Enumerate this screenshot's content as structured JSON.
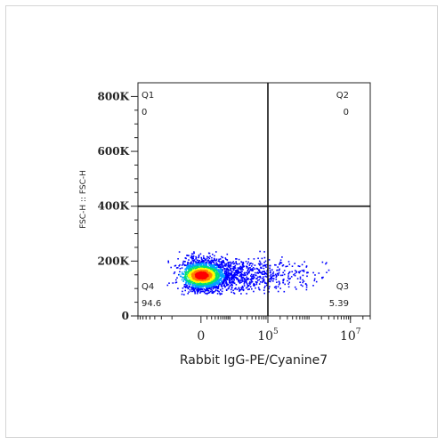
{
  "chart_data": {
    "type": "scatter",
    "xlabel": "Rabbit IgG-PE/Cyanine7",
    "ylabel": "FSC-H :: FSC-H",
    "x_scale": "biexponential",
    "y_scale": "linear",
    "xlim": [
      -80000,
      30000000
    ],
    "ylim": [
      0,
      850000
    ],
    "y_ticks": [
      {
        "value": 0,
        "label": "0"
      },
      {
        "value": 200000,
        "label": "200K"
      },
      {
        "value": 400000,
        "label": "400K"
      },
      {
        "value": 600000,
        "label": "600K"
      },
      {
        "value": 800000,
        "label": "800K"
      }
    ],
    "x_ticks": [
      {
        "value": 0,
        "base": "0",
        "exp": ""
      },
      {
        "value": 100000,
        "base": "10",
        "exp": "5"
      },
      {
        "value": 10000000,
        "base": "10",
        "exp": "7"
      }
    ],
    "gate": {
      "x": 100000,
      "y": 400000
    },
    "quadrants": [
      {
        "id": "Q1",
        "name": "Q1",
        "value": "0",
        "position": "top-left"
      },
      {
        "id": "Q2",
        "name": "Q2",
        "value": "0",
        "position": "top-right"
      },
      {
        "id": "Q3",
        "name": "Q3",
        "value": "5.39",
        "position": "bottom-right"
      },
      {
        "id": "Q4",
        "name": "Q4",
        "value": "94.6",
        "position": "bottom-left"
      }
    ],
    "population": {
      "center_x": 0,
      "center_y": 150000,
      "count": 2600,
      "x_range": [
        -20000,
        3000000
      ],
      "y_range": [
        80000,
        240000
      ],
      "density_colors": [
        "#0000ff",
        "#00a0ff",
        "#00e070",
        "#ffff00",
        "#ff8000",
        "#ff0000"
      ]
    },
    "grid": false
  }
}
